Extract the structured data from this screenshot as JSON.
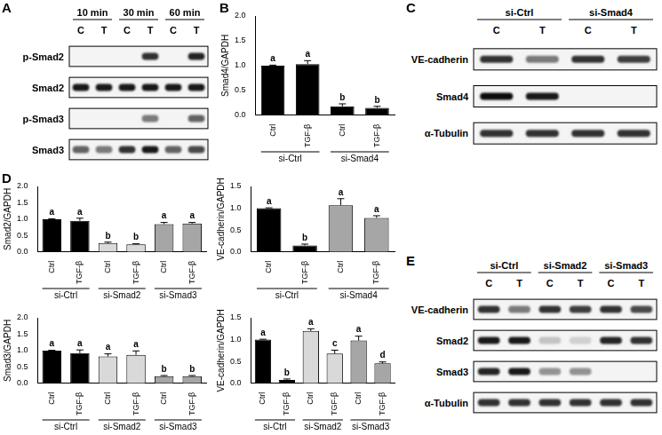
{
  "chart_data": [
    {
      "type": "bar",
      "panel": "B",
      "y_label": "Smad4/GAPDH",
      "categories": [
        "Ctrl",
        "TGF-β",
        "Ctrl",
        "TGF-β"
      ],
      "groups": [
        "si-Ctrl",
        "si-Smad4"
      ],
      "values": [
        1.0,
        1.03,
        0.18,
        0.15
      ],
      "errors": [
        0.01,
        0.07,
        0.05,
        0.03
      ],
      "colors": [
        "#000000",
        "#000000",
        "#000000",
        "#000000"
      ],
      "annotations": [
        "a",
        "a",
        "b",
        "b"
      ],
      "ylim": [
        0,
        2
      ],
      "yticks": [
        {
          "value": 0,
          "label": "0.0"
        },
        0.5,
        {
          "value": 1,
          "label": "1.0"
        },
        1.5,
        {
          "value": 2,
          "label": "2.0"
        }
      ],
      "grid": false
    },
    {
      "type": "bar",
      "panel": "D",
      "y_label": "Smad2/GAPDH",
      "categories": [
        "Ctrl",
        "TGF-β",
        "Ctrl",
        "TGF-β",
        "Ctrl",
        "TGF-β"
      ],
      "groups": [
        "si-Ctrl",
        "si-Smad2",
        "si-Smad3"
      ],
      "values": [
        1.0,
        0.95,
        0.27,
        0.23,
        0.85,
        0.87
      ],
      "errors": [
        0.01,
        0.08,
        0.03,
        0.02,
        0.05,
        0.03
      ],
      "colors": [
        "#000000",
        "#000000",
        "#d9d9d9",
        "#d9d9d9",
        "#a6a6a6",
        "#a6a6a6"
      ],
      "annotations": [
        "a",
        "a",
        "b",
        "b",
        "a",
        "a"
      ],
      "ylim": [
        0,
        2
      ],
      "yticks": [
        {
          "value": 0,
          "label": "0.0"
        },
        0.5,
        {
          "value": 1,
          "label": "1.0"
        },
        1.5,
        {
          "value": 2,
          "label": "2.0"
        }
      ],
      "grid": false
    },
    {
      "type": "bar",
      "y_label": "VE-cadherin/GAPDH",
      "categories": [
        "Ctrl",
        "TGF-β",
        "Ctrl",
        "TGF-β"
      ],
      "groups": [
        "si-Ctrl",
        "si-Smad4"
      ],
      "values": [
        1.0,
        0.15,
        1.07,
        0.78
      ],
      "errors": [
        0.01,
        0.03,
        0.15,
        0.05
      ],
      "colors": [
        "#000000",
        "#000000",
        "#a6a6a6",
        "#a6a6a6"
      ],
      "annotations": [
        "a",
        "b",
        "a",
        "a"
      ],
      "ylim": [
        0,
        1.5
      ],
      "yticks": [
        {
          "value": 0,
          "label": "0.0"
        },
        0.5,
        {
          "value": 1,
          "label": "1.0"
        },
        1.5
      ],
      "grid": false
    },
    {
      "type": "bar",
      "y_label": "Smad3/GAPDH",
      "categories": [
        "Ctrl",
        "TGF-β",
        "Ctrl",
        "TGF-β",
        "Ctrl",
        "TGF-β"
      ],
      "groups": [
        "si-Ctrl",
        "si-Smad2",
        "si-Smad3"
      ],
      "values": [
        1.0,
        0.92,
        0.82,
        0.87,
        0.22,
        0.22
      ],
      "errors": [
        0.01,
        0.1,
        0.08,
        0.12,
        0.02,
        0.02
      ],
      "colors": [
        "#000000",
        "#000000",
        "#d9d9d9",
        "#d9d9d9",
        "#a6a6a6",
        "#a6a6a6"
      ],
      "annotations": [
        "a",
        "a",
        "a",
        "a",
        "b",
        "b"
      ],
      "ylim": [
        0,
        2
      ],
      "yticks": [
        {
          "value": 0,
          "label": "0.0"
        },
        0.5,
        {
          "value": 1,
          "label": "1.0"
        },
        1.5,
        {
          "value": 2,
          "label": "2.0"
        }
      ],
      "grid": false
    },
    {
      "type": "bar",
      "y_label": "VE-cadherin/GAPDH",
      "categories": [
        "Ctrl",
        "TGF-β",
        "Ctrl",
        "TGF-β",
        "Ctrl",
        "TGF-β"
      ],
      "groups": [
        "si-Ctrl",
        "si-Smad2",
        "si-Smad3"
      ],
      "values": [
        1.0,
        0.08,
        1.2,
        0.68,
        0.98,
        0.46
      ],
      "errors": [
        0.01,
        0.02,
        0.05,
        0.08,
        0.1,
        0.03
      ],
      "colors": [
        "#000000",
        "#000000",
        "#d9d9d9",
        "#d9d9d9",
        "#a6a6a6",
        "#a6a6a6"
      ],
      "annotations": [
        "a",
        "b",
        "a",
        "c",
        "a",
        "d"
      ],
      "ylim": [
        0,
        1.5
      ],
      "yticks": [
        {
          "value": 0,
          "label": "0.0"
        },
        0.5,
        {
          "value": 1,
          "label": "1.0"
        },
        1.5
      ],
      "grid": false
    }
  ],
  "blots": [
    {
      "panel": "A",
      "groups": [
        "10 min",
        "30 min",
        "60 min"
      ],
      "lanes": [
        "C",
        "T",
        "C",
        "T",
        "C",
        "T"
      ],
      "rows": [
        {
          "label": "p-Smad2",
          "bands": [
            0,
            0,
            0,
            0.8,
            0,
            0.85
          ]
        },
        {
          "label": "Smad2",
          "bands": [
            0.9,
            0.9,
            0.9,
            0.9,
            0.9,
            0.9
          ]
        },
        {
          "label": "p-Smad3",
          "bands": [
            0,
            0,
            0,
            0.5,
            0,
            0.6
          ]
        },
        {
          "label": "Smad3",
          "bands": [
            0.6,
            0.5,
            0.8,
            0.9,
            0.6,
            0.7
          ]
        }
      ]
    },
    {
      "panel": "C",
      "groups": [
        "si-Ctrl",
        "si-Smad4"
      ],
      "lanes": [
        "C",
        "T",
        "C",
        "T"
      ],
      "rows": [
        {
          "label": "VE-cadherin",
          "bands": [
            0.8,
            0.5,
            0.8,
            0.75
          ]
        },
        {
          "label": "Smad4",
          "bands": [
            0.95,
            0.9,
            0,
            0
          ]
        },
        {
          "label": "α-Tubulin",
          "bands": [
            0.8,
            0.8,
            0.8,
            0.8
          ]
        }
      ]
    },
    {
      "panel": "E",
      "groups": [
        "si-Ctrl",
        "si-Smad2",
        "si-Smad3"
      ],
      "lanes": [
        "C",
        "T",
        "C",
        "T",
        "C",
        "T"
      ],
      "rows": [
        {
          "label": "VE-cadherin",
          "bands": [
            0.8,
            0.5,
            0.8,
            0.75,
            0.8,
            0.7
          ]
        },
        {
          "label": "Smad2",
          "bands": [
            0.9,
            0.9,
            0.2,
            0.15,
            0.85,
            0.8
          ]
        },
        {
          "label": "Smad3",
          "bands": [
            0.85,
            0.9,
            0.4,
            0.4,
            0,
            0
          ]
        },
        {
          "label": "α-Tubulin",
          "bands": [
            0.8,
            0.8,
            0.8,
            0.8,
            0.8,
            0.8
          ]
        }
      ]
    }
  ]
}
